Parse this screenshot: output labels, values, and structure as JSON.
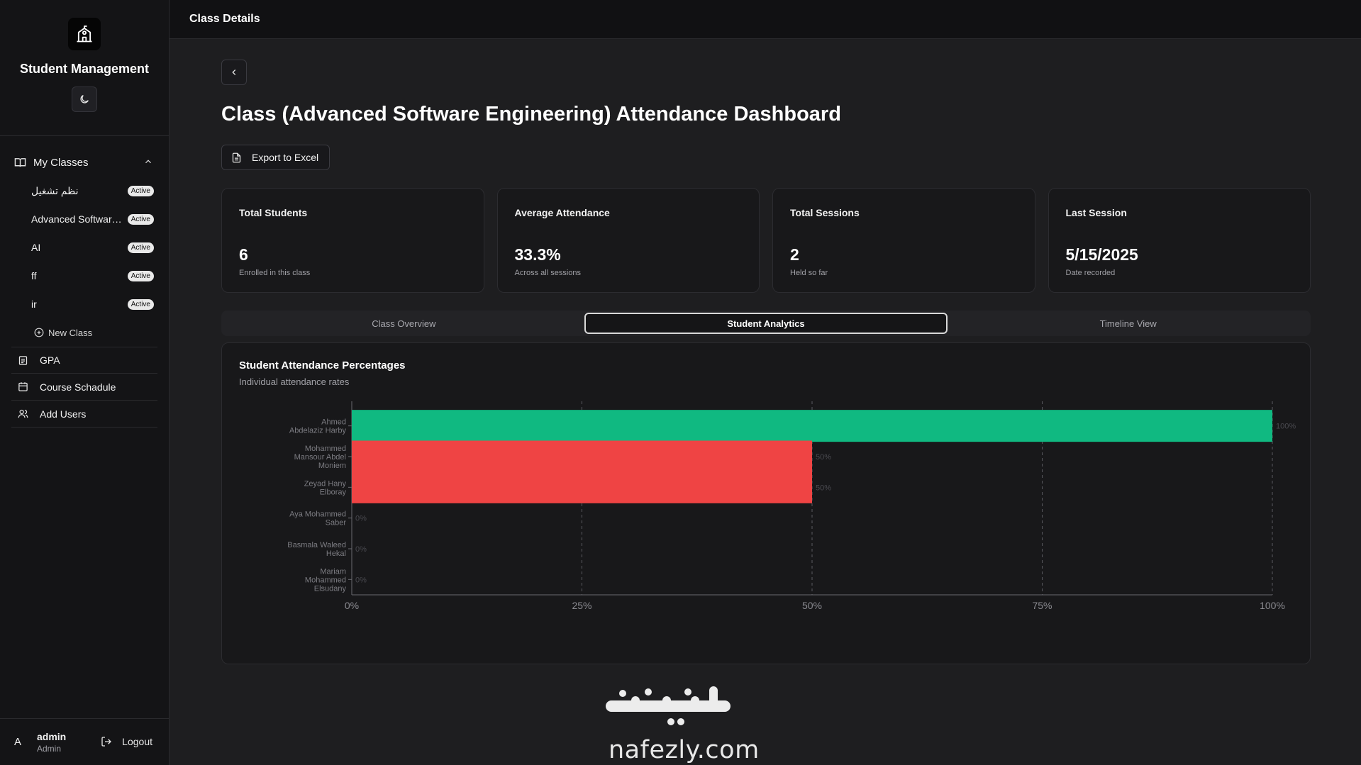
{
  "app": {
    "title": "Student Management"
  },
  "topbar": {
    "title": "Class Details"
  },
  "sidebar": {
    "group_label": "My Classes",
    "classes": [
      {
        "name": "نظم تشغيل",
        "badge": "Active"
      },
      {
        "name": "Advanced Software ...",
        "badge": "Active"
      },
      {
        "name": "AI",
        "badge": "Active"
      },
      {
        "name": "ff",
        "badge": "Active"
      },
      {
        "name": "ir",
        "badge": "Active"
      }
    ],
    "new_class_label": "New Class",
    "links": [
      {
        "label": "GPA",
        "icon": "document-icon"
      },
      {
        "label": "Course Schadule",
        "icon": "calendar-icon"
      },
      {
        "label": "Add Users",
        "icon": "users-icon"
      }
    ]
  },
  "user": {
    "initial": "A",
    "name": "admin",
    "role": "Admin",
    "logout_label": "Logout"
  },
  "page": {
    "title": "Class (Advanced Software Engineering) Attendance Dashboard",
    "export_label": "Export to Excel"
  },
  "stats": [
    {
      "label": "Total Students",
      "value": "6",
      "sub": "Enrolled in this class"
    },
    {
      "label": "Average Attendance",
      "value": "33.3%",
      "sub": "Across all sessions"
    },
    {
      "label": "Total Sessions",
      "value": "2",
      "sub": "Held so far"
    },
    {
      "label": "Last Session",
      "value": "5/15/2025",
      "sub": "Date recorded"
    }
  ],
  "tabs": [
    {
      "label": "Class Overview",
      "active": false
    },
    {
      "label": "Student Analytics",
      "active": true
    },
    {
      "label": "Timeline View",
      "active": false
    }
  ],
  "chart": {
    "title": "Student Attendance Percentages",
    "subtitle": "Individual attendance rates"
  },
  "chart_data": {
    "type": "bar",
    "orientation": "horizontal",
    "categories": [
      "Ahmed Abdelaziz Harby",
      "Mohammed Mansour Abdel Moniem",
      "Zeyad Hany Elboray",
      "Aya Mohammed Saber",
      "Basmala Waleed Hekal",
      "Mariam Mohammed Elsudany"
    ],
    "category_lines": [
      [
        "Ahmed",
        "Abdelaziz Harby"
      ],
      [
        "Mohammed",
        "Mansour Abdel",
        "Moniem"
      ],
      [
        "Zeyad Hany",
        "Elboray"
      ],
      [
        "Aya Mohammed",
        "Saber"
      ],
      [
        "Basmala Waleed",
        "Hekal"
      ],
      [
        "Mariam",
        "Mohammed",
        "Elsudany"
      ]
    ],
    "values": [
      100,
      50,
      50,
      0,
      0,
      0
    ],
    "value_labels": [
      "100%",
      "50%",
      "50%",
      "0%",
      "0%",
      "0%"
    ],
    "bar_colors": [
      "#10b981",
      "#ef4444",
      "#ef4444",
      "#ef4444",
      "#ef4444",
      "#ef4444"
    ],
    "xticks": [
      "0%",
      "25%",
      "50%",
      "75%",
      "100%"
    ],
    "xlim": [
      0,
      100
    ],
    "grid": true
  },
  "watermark": {
    "text": "nafezly.com",
    "logo_text": "نفذلي"
  },
  "colors": {
    "success": "#10b981",
    "danger": "#ef4444",
    "background": "#1e1e20"
  }
}
